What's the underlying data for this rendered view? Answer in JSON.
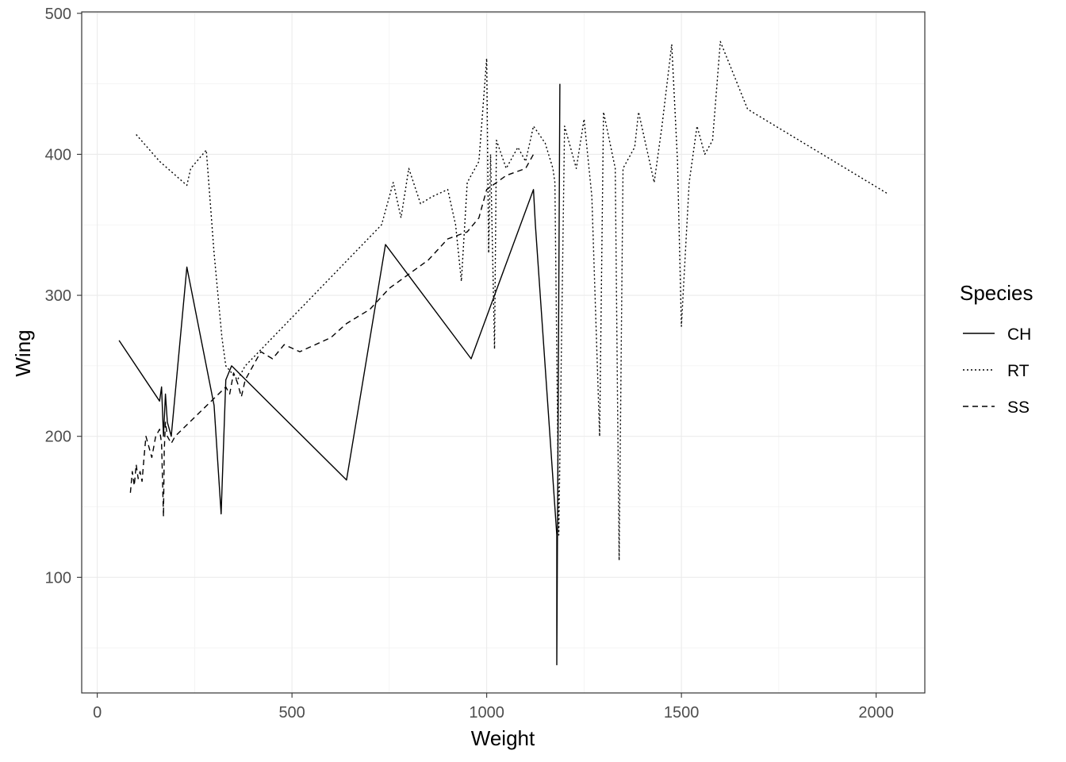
{
  "chart_data": {
    "type": "line",
    "xlabel": "Weight",
    "ylabel": "Wing",
    "xlim": [
      -40,
      2125
    ],
    "ylim": [
      18,
      501
    ],
    "x_ticks": [
      0,
      500,
      1000,
      1500,
      2000
    ],
    "x_tick_labels": [
      "0",
      "500",
      "1000",
      "1500",
      "2000"
    ],
    "y_ticks": [
      100,
      200,
      300,
      400,
      500
    ],
    "y_tick_labels": [
      "100",
      "200",
      "300",
      "400",
      "500"
    ],
    "grid": true,
    "theme": "bw",
    "legend": {
      "title": "Species",
      "position": "right",
      "entries": [
        {
          "label": "CH",
          "linetype": "solid"
        },
        {
          "label": "RT",
          "linetype": "dotted"
        },
        {
          "label": "SS",
          "linetype": "dashed"
        }
      ]
    },
    "series": [
      {
        "name": "CH",
        "linetype": "solid",
        "x": [
          56,
          160,
          165,
          170,
          175,
          180,
          185,
          190,
          230,
          300,
          318,
          330,
          345,
          640,
          740,
          960,
          1120,
          1125,
          1180,
          1180,
          1188
        ],
        "y": [
          268,
          225,
          235,
          200,
          230,
          210,
          205,
          200,
          320,
          222,
          145,
          240,
          250,
          169,
          336,
          255,
          375,
          350,
          130,
          38,
          450
        ]
      },
      {
        "name": "RT",
        "linetype": "dotted",
        "x": [
          100,
          160,
          230,
          240,
          280,
          300,
          320,
          330,
          360,
          380,
          730,
          760,
          780,
          800,
          830,
          860,
          900,
          920,
          935,
          950,
          980,
          1000,
          1005,
          1010,
          1020,
          1025,
          1050,
          1080,
          1100,
          1120,
          1150,
          1170,
          1175,
          1185,
          1200,
          1230,
          1250,
          1270,
          1290,
          1300,
          1330,
          1340,
          1350,
          1380,
          1390,
          1430,
          1450,
          1475,
          1490,
          1500,
          1520,
          1540,
          1560,
          1580,
          1600,
          1670,
          2030
        ],
        "y": [
          414,
          395,
          378,
          390,
          403,
          330,
          270,
          250,
          240,
          250,
          350,
          380,
          355,
          390,
          365,
          370,
          375,
          350,
          310,
          380,
          395,
          468,
          330,
          400,
          262,
          410,
          390,
          405,
          395,
          420,
          408,
          390,
          380,
          130,
          420,
          390,
          425,
          370,
          200,
          430,
          390,
          112,
          390,
          405,
          430,
          380,
          420,
          478,
          395,
          278,
          380,
          420,
          400,
          410,
          480,
          432,
          372
        ]
      },
      {
        "name": "SS",
        "linetype": "dashed",
        "x": [
          85,
          90,
          95,
          100,
          105,
          110,
          115,
          120,
          125,
          130,
          140,
          150,
          160,
          165,
          170,
          172,
          175,
          180,
          190,
          200,
          330,
          340,
          350,
          360,
          370,
          380,
          400,
          420,
          450,
          480,
          520,
          560,
          600,
          640,
          700,
          750,
          800,
          850,
          900,
          950,
          980,
          1000,
          1050,
          1100,
          1120
        ],
        "y": [
          160,
          175,
          165,
          180,
          170,
          175,
          168,
          185,
          200,
          195,
          185,
          200,
          205,
          195,
          143,
          190,
          210,
          200,
          195,
          200,
          235,
          230,
          245,
          238,
          228,
          240,
          250,
          260,
          255,
          265,
          260,
          265,
          270,
          280,
          290,
          305,
          315,
          325,
          340,
          345,
          355,
          375,
          385,
          390,
          400
        ]
      }
    ]
  }
}
